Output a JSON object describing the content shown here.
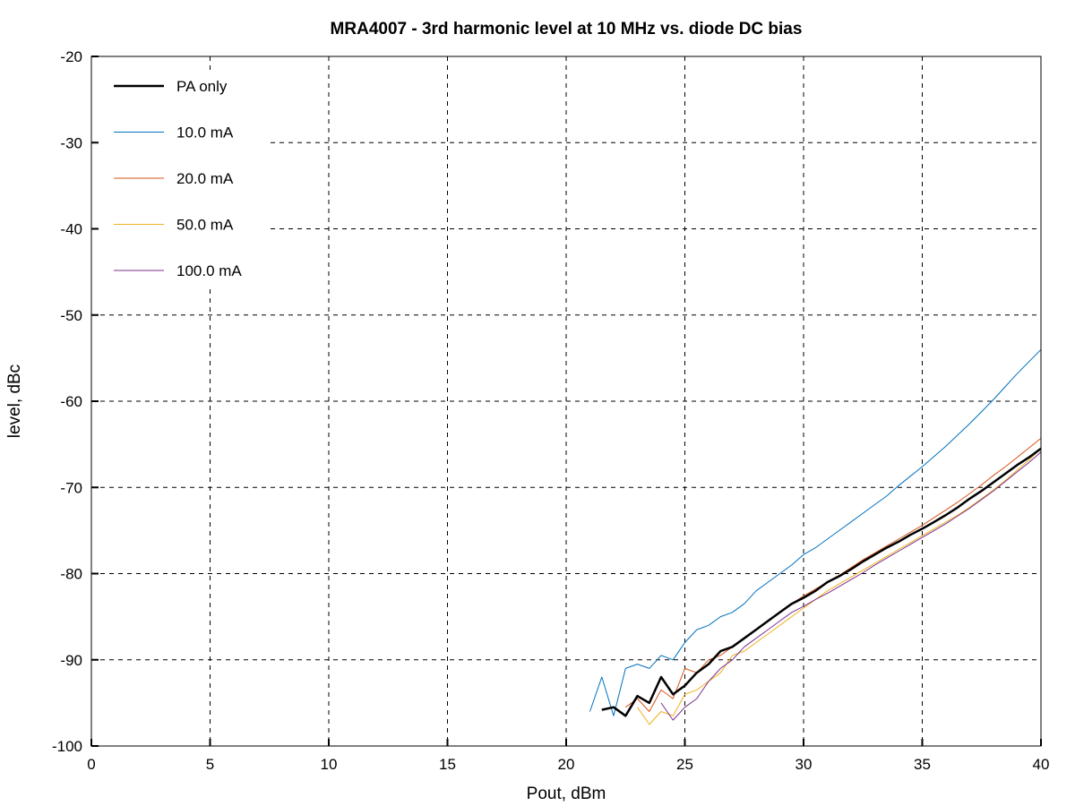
{
  "chart_data": {
    "type": "line",
    "title": "MRA4007 - 3rd harmonic level at 10 MHz vs. diode DC bias",
    "xlabel": "Pout, dBm",
    "ylabel": "level, dBc",
    "xlim": [
      0,
      40
    ],
    "ylim": [
      -100,
      -20
    ],
    "xticks": [
      0,
      5,
      10,
      15,
      20,
      25,
      30,
      35,
      40
    ],
    "yticks": [
      -20,
      -30,
      -40,
      -50,
      -60,
      -70,
      -80,
      -90,
      -100
    ],
    "grid": true,
    "legend_position": "top-left",
    "x": [
      21,
      21.5,
      22,
      22.5,
      23,
      23.5,
      24,
      24.5,
      25,
      25.5,
      26,
      26.5,
      27,
      27.5,
      28,
      28.5,
      29,
      29.5,
      30,
      30.5,
      31,
      31.5,
      32,
      32.5,
      33,
      33.5,
      34,
      34.5,
      35,
      35.5,
      36,
      36.5,
      37,
      37.5,
      38,
      38.5,
      39,
      39.5,
      40
    ],
    "series": [
      {
        "name": "PA only",
        "color": "#000000",
        "width": 2.5,
        "values": [
          null,
          -95.8,
          -95.5,
          -96.5,
          -94.2,
          -95,
          -92,
          -94,
          -93,
          -91.5,
          -90.5,
          -89,
          -88.5,
          -87.5,
          -86.5,
          -85.5,
          -84.5,
          -83.5,
          -82.8,
          -82,
          -81,
          -80.3,
          -79.5,
          -78.6,
          -77.8,
          -77,
          -76.3,
          -75.5,
          -74.8,
          -74,
          -73.2,
          -72.3,
          -71.3,
          -70.4,
          -69.4,
          -68.4,
          -67.4,
          -66.5,
          -65.5
        ]
      },
      {
        "name": "10.0 mA",
        "color": "#0072bd",
        "width": 1,
        "values": [
          -96,
          -92,
          -96.5,
          -91,
          -90.5,
          -91,
          -89.5,
          -90,
          -88,
          -86.5,
          -86,
          -85,
          -84.5,
          -83.5,
          -82,
          -81,
          -80,
          -79,
          -77.8,
          -77,
          -76,
          -75,
          -74,
          -73,
          -72,
          -71,
          -69.8,
          -68.7,
          -67.6,
          -66.4,
          -65.2,
          -63.9,
          -62.6,
          -61.2,
          -59.8,
          -58.3,
          -56.8,
          -55.4,
          -54
        ]
      },
      {
        "name": "20.0 mA",
        "color": "#d95319",
        "width": 1,
        "values": [
          null,
          null,
          null,
          -95.5,
          -94.5,
          -96,
          -93.5,
          -94.5,
          -91,
          -91.5,
          -90,
          -89.5,
          -88.5,
          -87.5,
          -86.5,
          -85.5,
          -84.5,
          -83.5,
          -82.6,
          -81.8,
          -81,
          -80.2,
          -79.3,
          -78.4,
          -77.6,
          -76.8,
          -76,
          -75.2,
          -74.4,
          -73.5,
          -72.6,
          -71.7,
          -70.7,
          -69.7,
          -68.6,
          -67.6,
          -66.5,
          -65.4,
          -64.3
        ]
      },
      {
        "name": "50.0 mA",
        "color": "#edb120",
        "width": 1,
        "values": [
          null,
          null,
          null,
          null,
          -95.5,
          -97.5,
          -96,
          -96.5,
          -94,
          -93.5,
          -92.5,
          -91.5,
          -89.5,
          -89,
          -88,
          -87,
          -86,
          -85,
          -84,
          -83,
          -82,
          -81.2,
          -80.4,
          -79.6,
          -78.8,
          -78,
          -77.2,
          -76.4,
          -75.6,
          -74.8,
          -74,
          -73.2,
          -72.3,
          -71.3,
          -70.3,
          -69.2,
          -68,
          -66.8,
          -65.5
        ]
      },
      {
        "name": "100.0 mA",
        "color": "#7e2f8e",
        "width": 1,
        "values": [
          null,
          null,
          null,
          null,
          null,
          null,
          -95,
          -97,
          -95.5,
          -94.5,
          -92.5,
          -91,
          -90,
          -88.5,
          -87.5,
          -86.5,
          -85.5,
          -84.5,
          -83.8,
          -83,
          -82.3,
          -81.5,
          -80.7,
          -79.9,
          -79,
          -78.2,
          -77.4,
          -76.6,
          -75.8,
          -75,
          -74.2,
          -73.3,
          -72.4,
          -71.4,
          -70.4,
          -69.3,
          -68.2,
          -67.1,
          -65.9
        ]
      }
    ]
  }
}
